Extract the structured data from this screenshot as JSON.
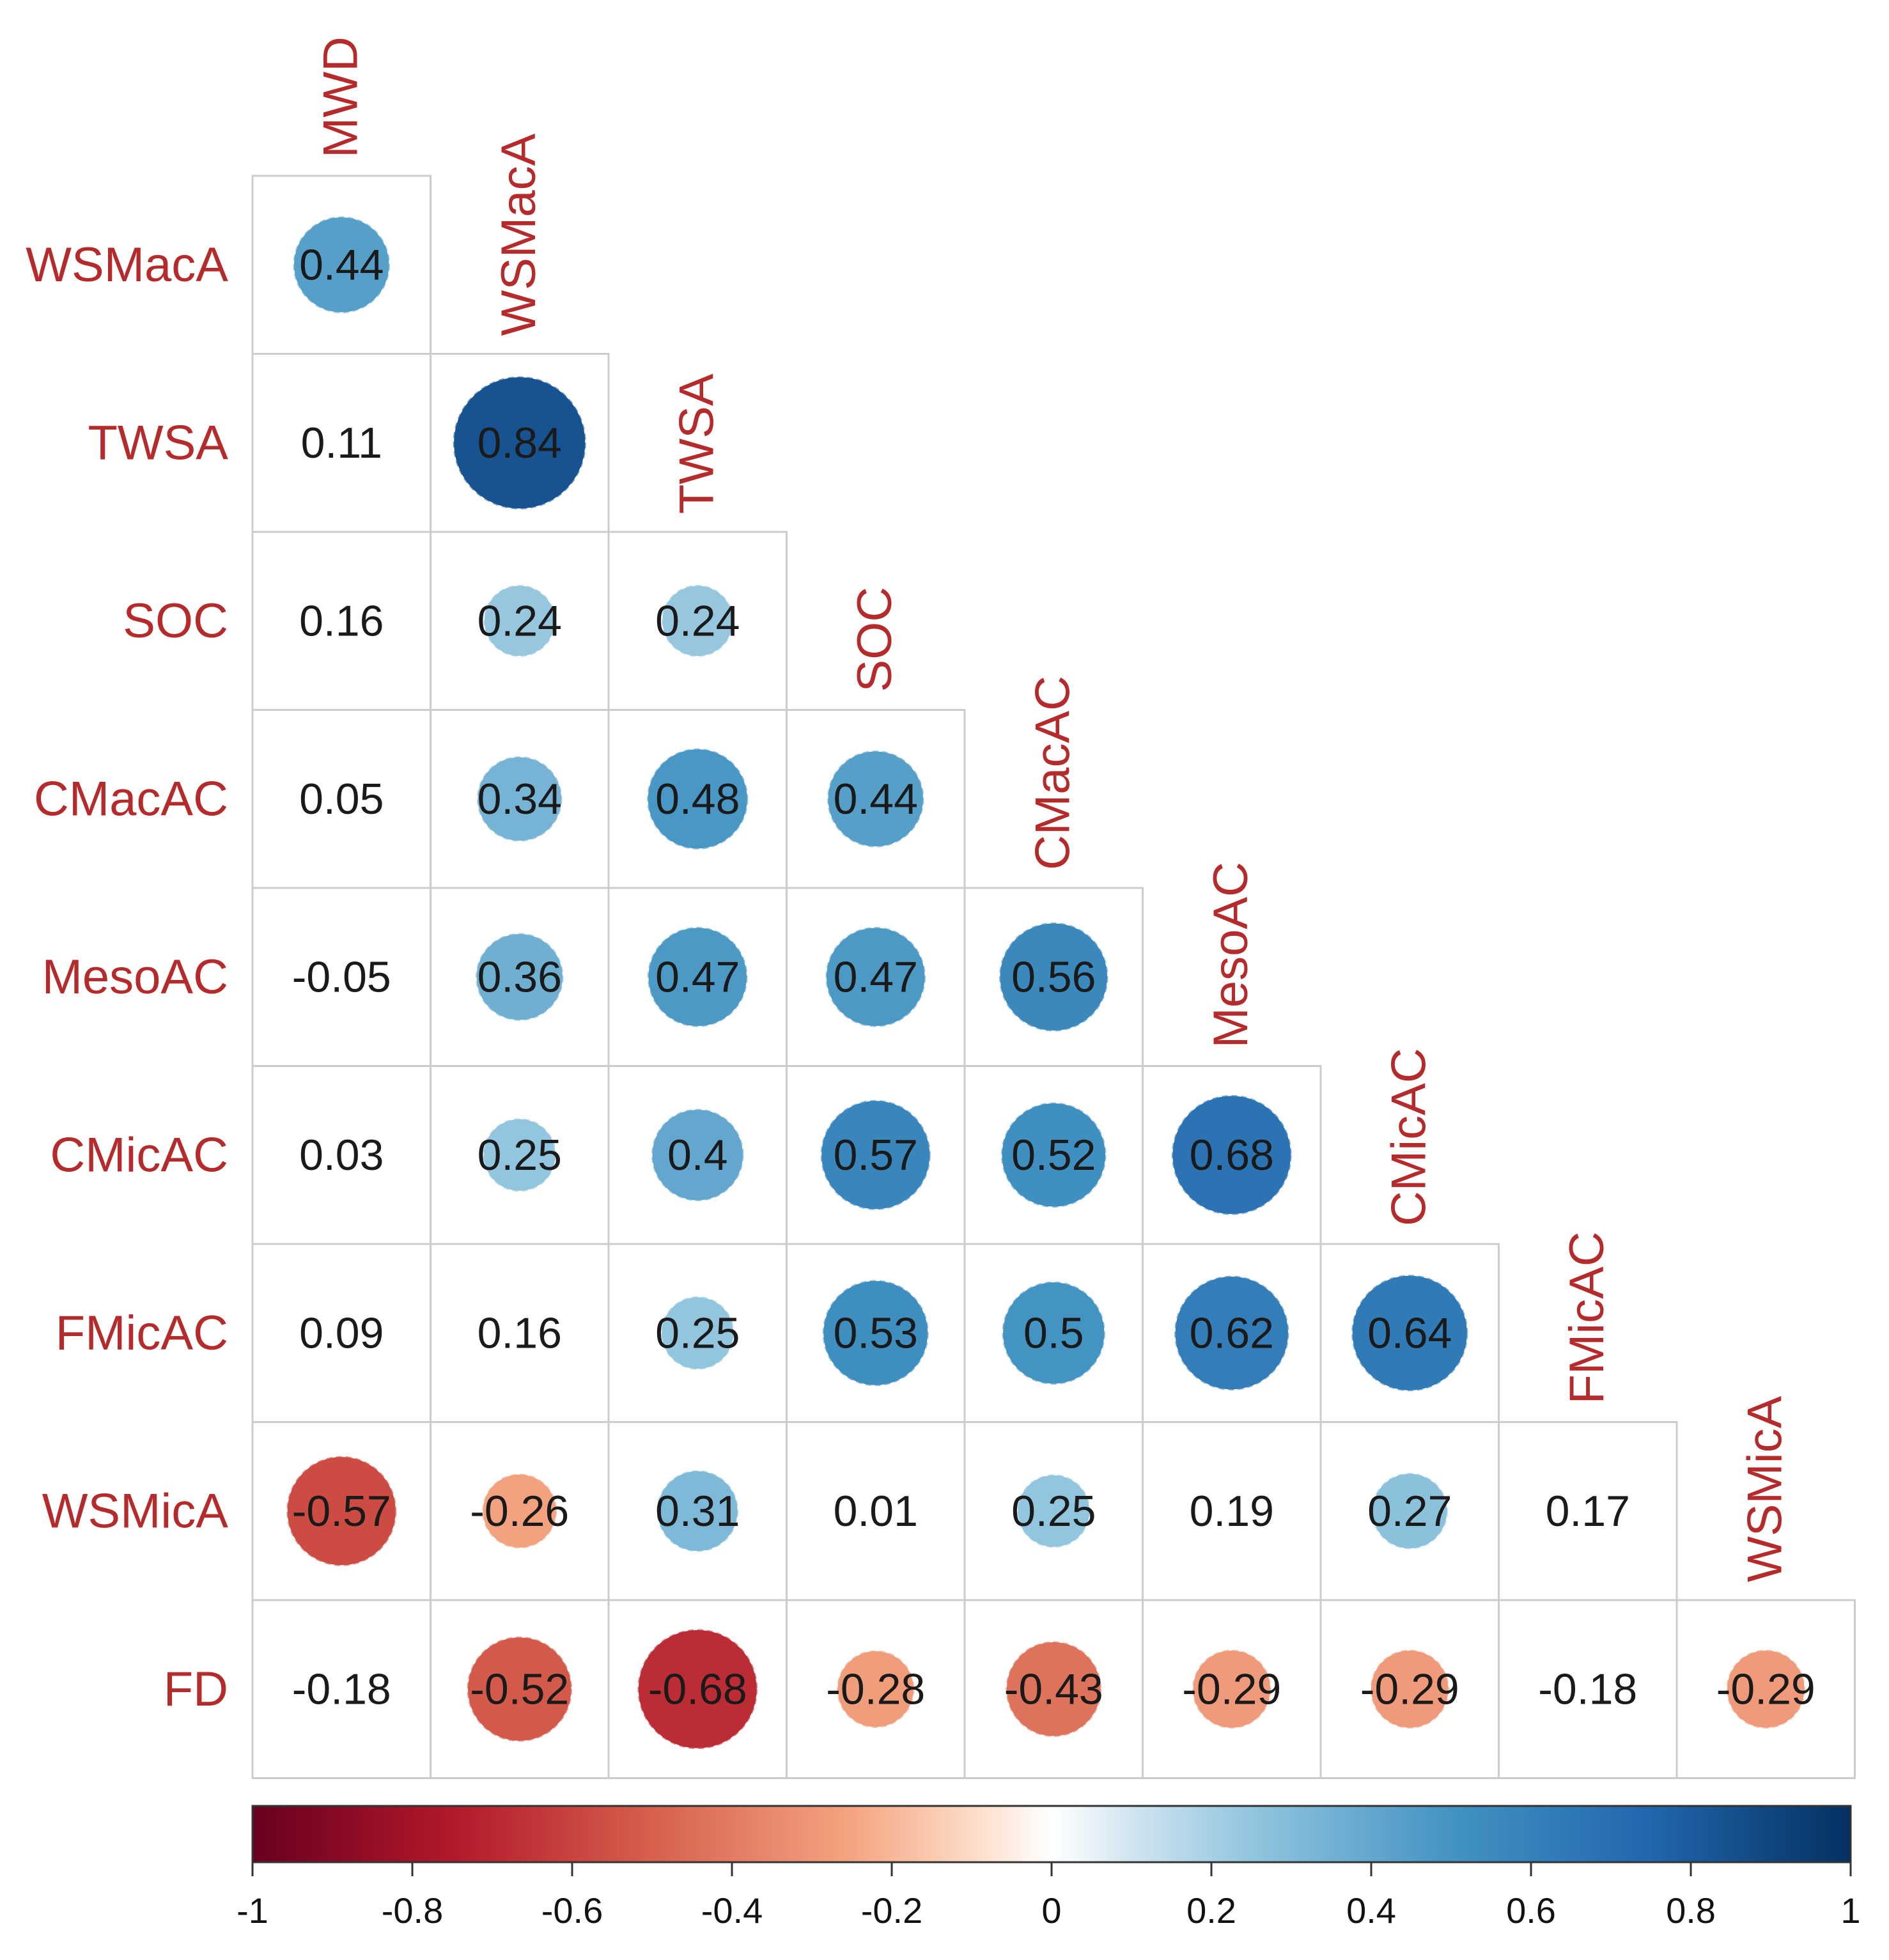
{
  "chart_data": {
    "type": "heatmap",
    "subtype": "correlation-matrix-lower-triangle",
    "title": "",
    "row_variables": [
      "WSMacA",
      "TWSA",
      "SOC",
      "CMacAC",
      "MesoAC",
      "CMicAC",
      "FMicAC",
      "WSMicA",
      "FD"
    ],
    "column_variables": [
      "MWD",
      "WSMacA",
      "TWSA",
      "SOC",
      "CMacAC",
      "MesoAC",
      "CMicAC",
      "FMicAC",
      "WSMicA"
    ],
    "matrix": [
      [
        0.44
      ],
      [
        0.11,
        0.84
      ],
      [
        0.16,
        0.24,
        0.24
      ],
      [
        0.05,
        0.34,
        0.48,
        0.44
      ],
      [
        -0.05,
        0.36,
        0.47,
        0.47,
        0.56
      ],
      [
        0.03,
        0.25,
        0.4,
        0.57,
        0.52,
        0.68
      ],
      [
        0.09,
        0.16,
        0.25,
        0.53,
        0.5,
        0.62,
        0.64
      ],
      [
        -0.57,
        -0.26,
        0.31,
        0.01,
        0.25,
        0.19,
        0.27,
        0.17
      ],
      [
        -0.18,
        -0.52,
        -0.68,
        -0.28,
        -0.43,
        -0.29,
        -0.29,
        -0.18,
        -0.29
      ]
    ],
    "circle_threshold": 0.2,
    "color_scale": {
      "range": [
        -1,
        1
      ],
      "ticks": [
        "-1",
        "-0.8",
        "-0.6",
        "-0.4",
        "-0.2",
        "0",
        "0.2",
        "0.4",
        "0.6",
        "0.8",
        "1"
      ],
      "stops": [
        {
          "value": -1.0,
          "color": "#67001f"
        },
        {
          "value": -0.75,
          "color": "#b2182b"
        },
        {
          "value": -0.5,
          "color": "#d6604d"
        },
        {
          "value": -0.25,
          "color": "#f4a582"
        },
        {
          "value": -0.1,
          "color": "#fddbc7"
        },
        {
          "value": 0.0,
          "color": "#ffffff"
        },
        {
          "value": 0.1,
          "color": "#d1e5f0"
        },
        {
          "value": 0.25,
          "color": "#92c5de"
        },
        {
          "value": 0.5,
          "color": "#4393c3"
        },
        {
          "value": 0.75,
          "color": "#2166ac"
        },
        {
          "value": 1.0,
          "color": "#053061"
        }
      ],
      "legend_placement": "bottom"
    },
    "label_color": "#b52a2a"
  }
}
